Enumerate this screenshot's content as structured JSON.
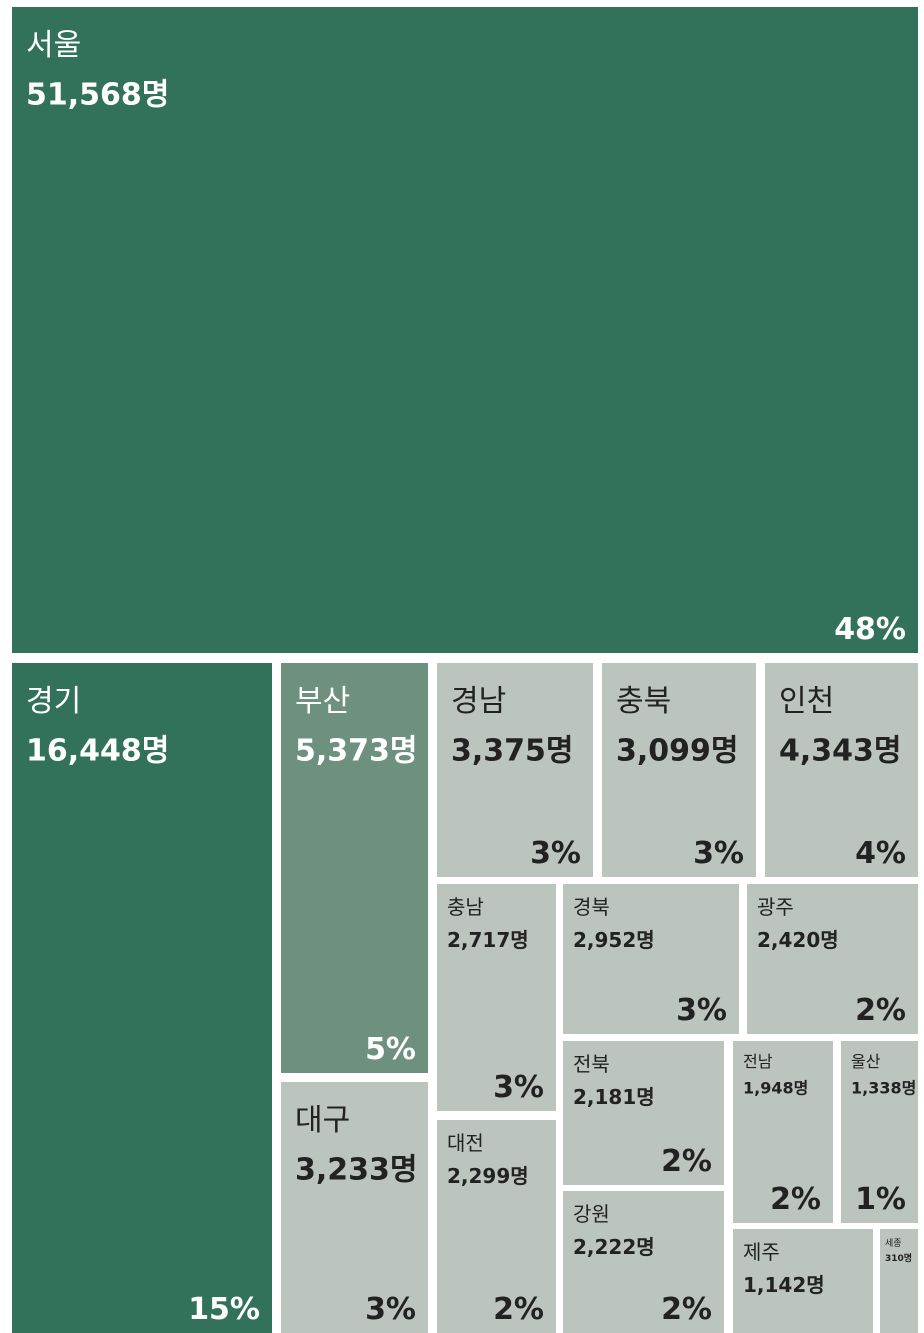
{
  "chart_data": {
    "type": "treemap",
    "categories": [
      "서울",
      "경기",
      "부산",
      "대구",
      "경남",
      "충북",
      "인천",
      "충남",
      "경북",
      "광주",
      "대전",
      "전북",
      "강원",
      "전남",
      "울산",
      "제주",
      "세종"
    ],
    "values": [
      51568,
      16448,
      5373,
      3233,
      3375,
      3099,
      4343,
      2717,
      2952,
      2420,
      2299,
      2181,
      2222,
      1948,
      1338,
      1142,
      310
    ],
    "value_labels": [
      "51,568명",
      "16,448명",
      "5,373명",
      "3,233명",
      "3,375명",
      "3,099명",
      "4,343명",
      "2,717명",
      "2,952명",
      "2,420명",
      "2,299명",
      "2,181명",
      "2,222명",
      "1,948명",
      "1,338명",
      "1,142명",
      "310명"
    ],
    "shares": [
      48,
      15,
      5,
      3,
      3,
      3,
      4,
      3,
      3,
      2,
      2,
      2,
      2,
      2,
      1,
      null,
      null
    ],
    "share_labels": [
      "48%",
      "15%",
      "5%",
      "3%",
      "3%",
      "3%",
      "4%",
      "3%",
      "3%",
      "2%",
      "2%",
      "2%",
      "2%",
      "2%",
      "1%",
      null,
      null
    ],
    "colors": [
      "#32725a",
      "#32725a",
      "#6e907e",
      "#bcc5bd",
      "#bcc5bd",
      "#bcc5bd",
      "#bcc5bd",
      "#bcc5bd",
      "#bcc5bd",
      "#bcc5bd",
      "#bcc5bd",
      "#bcc5bd",
      "#bcc5bd",
      "#bcc5bd",
      "#bcc5bd",
      "#bcc5bd",
      "#bcc5bd"
    ]
  }
}
